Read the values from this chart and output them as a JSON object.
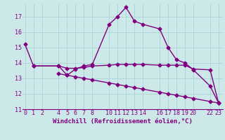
{
  "xlabel": "Windchill (Refroidissement éolien,°C)",
  "bg_color": "#cce8e8",
  "line_color": "#800080",
  "xlim": [
    -0.3,
    23.5
  ],
  "ylim": [
    11.0,
    17.8
  ],
  "yticks": [
    11,
    12,
    13,
    14,
    15,
    16,
    17
  ],
  "xticks": [
    0,
    1,
    2,
    4,
    5,
    6,
    7,
    8,
    10,
    11,
    12,
    13,
    14,
    16,
    17,
    18,
    19,
    20,
    22,
    23
  ],
  "line1_x": [
    0,
    1,
    4,
    5,
    6,
    7,
    8,
    10,
    11,
    12,
    13,
    14,
    16,
    17,
    18,
    19,
    20,
    22,
    23
  ],
  "line1_y": [
    15.2,
    13.8,
    13.8,
    13.2,
    13.6,
    13.8,
    13.9,
    16.5,
    17.0,
    17.6,
    16.7,
    16.5,
    16.2,
    15.0,
    14.2,
    14.0,
    13.55,
    12.5,
    11.4
  ],
  "line2_x": [
    1,
    4,
    5,
    6,
    7,
    8,
    10,
    11,
    12,
    13,
    14,
    16,
    17,
    18,
    19,
    20,
    22,
    23
  ],
  "line2_y": [
    13.8,
    13.8,
    13.65,
    13.65,
    13.7,
    13.8,
    13.85,
    13.9,
    13.9,
    13.9,
    13.9,
    13.85,
    13.85,
    13.85,
    13.85,
    13.6,
    13.55,
    11.4
  ],
  "line3_x": [
    4,
    5,
    6,
    7,
    8,
    10,
    11,
    12,
    13,
    14,
    16,
    17,
    18,
    19,
    20,
    22,
    23
  ],
  "line3_y": [
    13.3,
    13.2,
    13.1,
    13.0,
    12.9,
    12.7,
    12.6,
    12.5,
    12.4,
    12.3,
    12.1,
    12.0,
    11.9,
    11.8,
    11.7,
    11.5,
    11.4
  ],
  "grid_color": "#aad4d4",
  "marker": "D",
  "marker_size": 2.5,
  "line_width": 1.0,
  "xlabel_fontsize": 6.5,
  "tick_fontsize": 6.0
}
